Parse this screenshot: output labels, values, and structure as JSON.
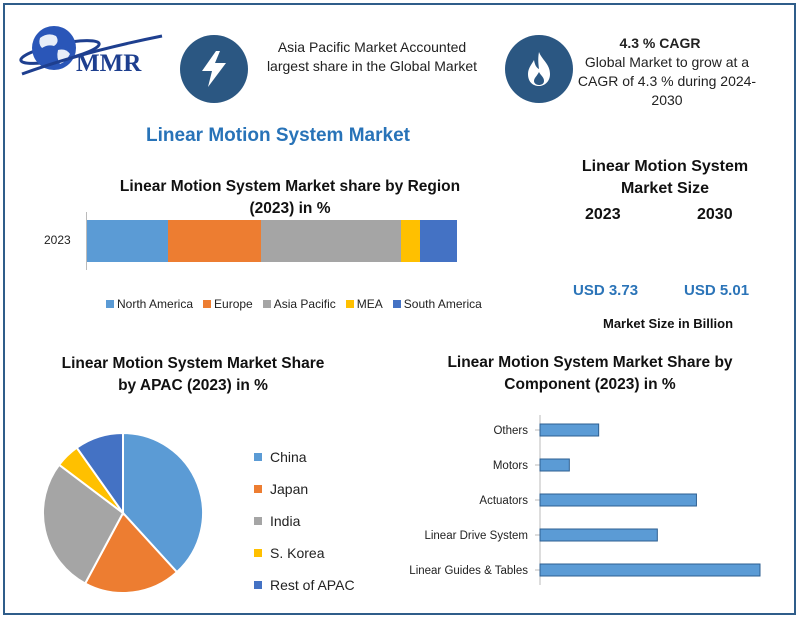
{
  "logo": {
    "text": "MMR"
  },
  "header": {
    "region_note": "Asia Pacific Market Accounted largest share in the Global Market",
    "cagr_title": "4.3 % CAGR",
    "cagr_note": "Global Market to grow at a CAGR of 4.3 % during 2024-2030",
    "icons": [
      "lightning-bolt-icon",
      "flame-icon"
    ]
  },
  "main_title": "Linear Motion System Market",
  "market_size": {
    "title": "Linear Motion System Market Size",
    "year_a": "2023",
    "year_b": "2030",
    "value_a": "USD 3.73",
    "value_b": "USD 5.01",
    "unit": "Market Size in Billion"
  },
  "colors": {
    "blue": "#5b9bd5",
    "orange": "#ed7d31",
    "gray": "#a5a5a5",
    "yellow": "#ffc000",
    "dark_blue": "#4472c4",
    "accent": "#2b74b8"
  },
  "chart_data": [
    {
      "type": "bar",
      "orientation": "horizontal-stacked",
      "title": "Linear Motion System Market share by Region (2023) in %",
      "categories": [
        "2023"
      ],
      "series": [
        {
          "name": "North America",
          "values": [
            22
          ]
        },
        {
          "name": "Europe",
          "values": [
            25
          ]
        },
        {
          "name": "Asia Pacific",
          "values": [
            38
          ]
        },
        {
          "name": "MEA",
          "values": [
            5
          ]
        },
        {
          "name": "South America",
          "values": [
            10
          ]
        }
      ],
      "legend": "bottom"
    },
    {
      "type": "pie",
      "title": "Linear Motion System Market Share by APAC (2023) in %",
      "categories": [
        "China",
        "Japan",
        "India",
        "S. Korea",
        "Rest of APAC"
      ],
      "values": [
        39,
        20,
        28,
        5,
        10
      ],
      "legend": "right"
    },
    {
      "type": "bar",
      "orientation": "horizontal",
      "title": "Linear Motion System Market Share by Component (2023) in %",
      "categories": [
        "Others",
        "Motors",
        "Actuators",
        "Linear Drive System",
        "Linear Guides & Tables"
      ],
      "values": [
        12,
        6,
        32,
        24,
        45
      ]
    }
  ]
}
